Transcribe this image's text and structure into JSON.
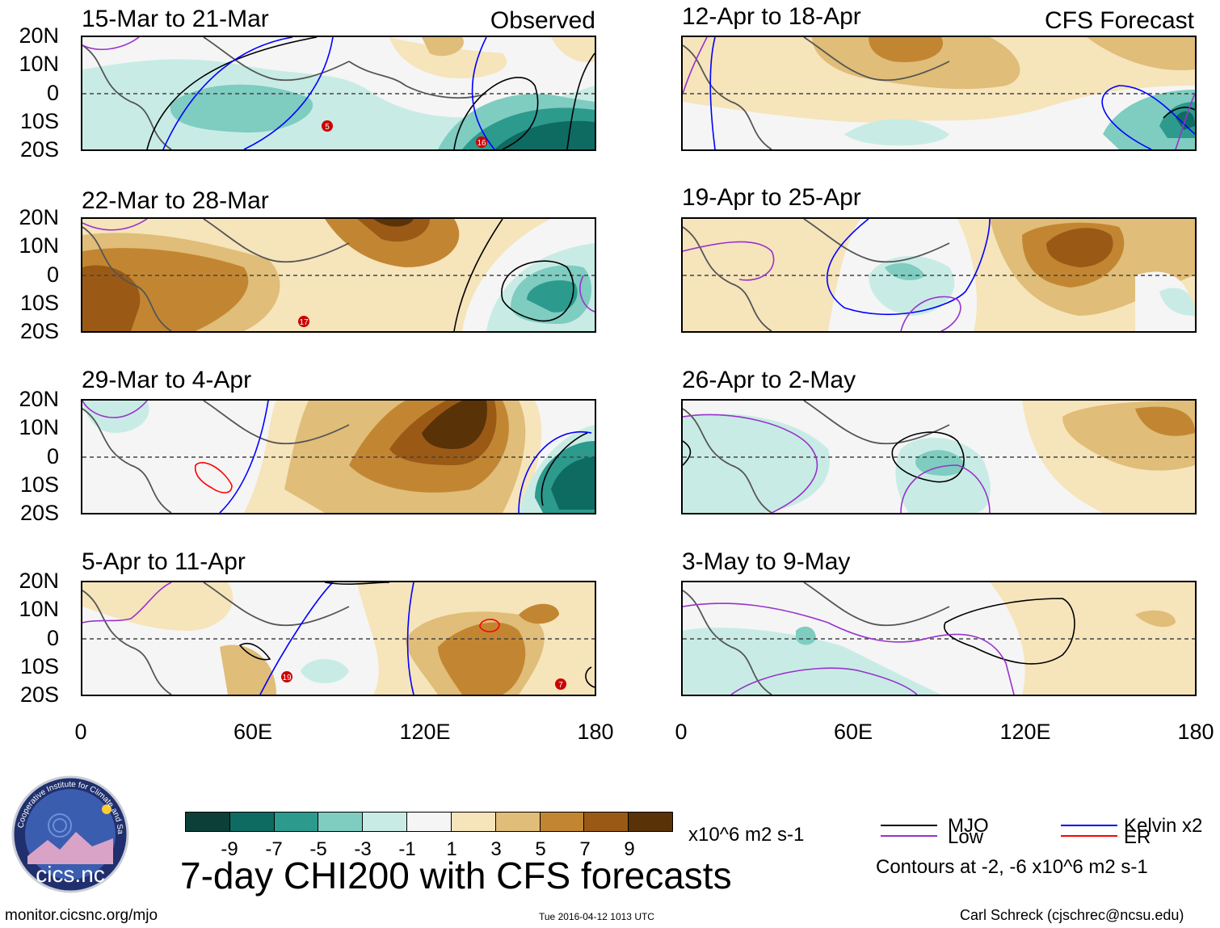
{
  "panels": [
    {
      "title": "15-Mar to 21-Mar",
      "tag": "Observed",
      "storms": [
        "5",
        "16"
      ]
    },
    {
      "title": "22-Mar to 28-Mar",
      "tag": "",
      "storms": [
        "17"
      ]
    },
    {
      "title": "29-Mar to 4-Apr",
      "tag": "",
      "storms": []
    },
    {
      "title": "5-Apr to 11-Apr",
      "tag": "",
      "storms": [
        "19",
        "7"
      ]
    },
    {
      "title": "12-Apr to 18-Apr",
      "tag": "CFS Forecast",
      "storms": []
    },
    {
      "title": "19-Apr to 25-Apr",
      "tag": "",
      "storms": []
    },
    {
      "title": "26-Apr to 2-May",
      "tag": "",
      "storms": []
    },
    {
      "title": "3-May to 9-May",
      "tag": "",
      "storms": []
    }
  ],
  "lat_labels": [
    "20N",
    "10N",
    "0",
    "10S",
    "20S"
  ],
  "lon_labels": [
    "0",
    "60E",
    "120E",
    "180"
  ],
  "colorbar": {
    "labels": [
      "-9",
      "-7",
      "-5",
      "-3",
      "-1",
      "1",
      "3",
      "5",
      "7",
      "9"
    ],
    "colors": [
      "#0b3f38",
      "#0e6b62",
      "#2d9a8e",
      "#7fccc0",
      "#c8ece5",
      "#f5f5f5",
      "#f6e4bb",
      "#e0bd78",
      "#c28632",
      "#9a5a16",
      "#5a3208"
    ],
    "units": "x10^6 m2 s-1"
  },
  "title": "7-day CHI200 with CFS forecasts",
  "legend": {
    "items": [
      {
        "label": "MJO",
        "color": "#000000"
      },
      {
        "label": "Kelvin x2",
        "color": "#0000ff"
      },
      {
        "label": "Low",
        "color": "#9932cc"
      },
      {
        "label": "ER",
        "color": "#ff0000"
      }
    ],
    "note": "Contours at -2, -6 x10^6 m2 s-1"
  },
  "logo_text": "cics.nc",
  "logo_ring_text": "Cooperative Institute for Climate and Satellites",
  "footer": {
    "left": "monitor.cicsnc.org/mjo",
    "center": "Tue 2016-04-12 1013 UTC",
    "right": "Carl Schreck (cjschrec@ncsu.edu)"
  }
}
